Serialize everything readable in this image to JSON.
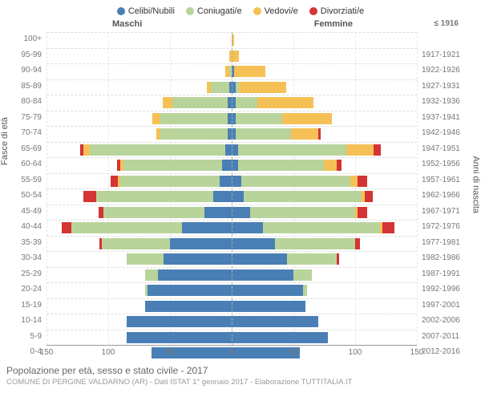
{
  "legend": [
    {
      "label": "Celibi/Nubili",
      "color": "#4a7fb5"
    },
    {
      "label": "Coniugati/e",
      "color": "#b8d49b"
    },
    {
      "label": "Vedovi/e",
      "color": "#f5c156"
    },
    {
      "label": "Divorziati/e",
      "color": "#d43434"
    }
  ],
  "headers": {
    "male": "Maschi",
    "female": "Femmine",
    "top_right": "≤ 1916"
  },
  "axes": {
    "y_title": "Fasce di età",
    "y2_title": "Anni di nascita",
    "x_ticks": [
      150,
      100,
      50,
      0,
      50,
      100,
      150
    ],
    "x_max": 150
  },
  "colors": {
    "single": "#4a7fb5",
    "married": "#b8d49b",
    "widowed": "#f5c156",
    "divorced": "#d43434",
    "grid": "#e8e8e8",
    "center": "#aaaaaa"
  },
  "rows": [
    {
      "age": "100+",
      "year": "",
      "m": [
        0,
        0,
        0,
        0
      ],
      "f": [
        0,
        0,
        2,
        0
      ]
    },
    {
      "age": "95-99",
      "year": "1917-1921",
      "m": [
        0,
        0,
        2,
        0
      ],
      "f": [
        0,
        0,
        6,
        0
      ]
    },
    {
      "age": "90-94",
      "year": "1922-1926",
      "m": [
        0,
        2,
        3,
        0
      ],
      "f": [
        2,
        0,
        25,
        0
      ]
    },
    {
      "age": "85-89",
      "year": "1927-1931",
      "m": [
        2,
        15,
        3,
        0
      ],
      "f": [
        3,
        3,
        38,
        0
      ]
    },
    {
      "age": "80-84",
      "year": "1932-1936",
      "m": [
        3,
        45,
        8,
        0
      ],
      "f": [
        3,
        18,
        45,
        0
      ]
    },
    {
      "age": "75-79",
      "year": "1937-1941",
      "m": [
        3,
        55,
        6,
        0
      ],
      "f": [
        3,
        38,
        40,
        0
      ]
    },
    {
      "age": "70-74",
      "year": "1942-1946",
      "m": [
        3,
        55,
        3,
        0
      ],
      "f": [
        3,
        45,
        22,
        2
      ]
    },
    {
      "age": "65-69",
      "year": "1947-1951",
      "m": [
        5,
        110,
        5,
        3
      ],
      "f": [
        5,
        88,
        22,
        6
      ]
    },
    {
      "age": "60-64",
      "year": "1952-1956",
      "m": [
        8,
        80,
        2,
        3
      ],
      "f": [
        5,
        70,
        10,
        4
      ]
    },
    {
      "age": "55-59",
      "year": "1957-1961",
      "m": [
        10,
        80,
        2,
        6
      ],
      "f": [
        8,
        88,
        6,
        8
      ]
    },
    {
      "age": "50-54",
      "year": "1962-1966",
      "m": [
        15,
        95,
        0,
        10
      ],
      "f": [
        10,
        95,
        3,
        6
      ]
    },
    {
      "age": "45-49",
      "year": "1967-1971",
      "m": [
        22,
        82,
        0,
        4
      ],
      "f": [
        15,
        85,
        2,
        8
      ]
    },
    {
      "age": "40-44",
      "year": "1972-1976",
      "m": [
        40,
        90,
        0,
        8
      ],
      "f": [
        25,
        95,
        2,
        10
      ]
    },
    {
      "age": "35-39",
      "year": "1977-1981",
      "m": [
        50,
        55,
        0,
        2
      ],
      "f": [
        35,
        65,
        0,
        4
      ]
    },
    {
      "age": "30-34",
      "year": "1982-1986",
      "m": [
        55,
        30,
        0,
        0
      ],
      "f": [
        45,
        40,
        0,
        2
      ]
    },
    {
      "age": "25-29",
      "year": "1987-1991",
      "m": [
        60,
        10,
        0,
        0
      ],
      "f": [
        50,
        15,
        0,
        0
      ]
    },
    {
      "age": "20-24",
      "year": "1992-1996",
      "m": [
        68,
        2,
        0,
        0
      ],
      "f": [
        58,
        3,
        0,
        0
      ]
    },
    {
      "age": "15-19",
      "year": "1997-2001",
      "m": [
        70,
        0,
        0,
        0
      ],
      "f": [
        60,
        0,
        0,
        0
      ]
    },
    {
      "age": "10-14",
      "year": "2002-2006",
      "m": [
        85,
        0,
        0,
        0
      ],
      "f": [
        70,
        0,
        0,
        0
      ]
    },
    {
      "age": "5-9",
      "year": "2007-2011",
      "m": [
        85,
        0,
        0,
        0
      ],
      "f": [
        78,
        0,
        0,
        0
      ]
    },
    {
      "age": "0-4",
      "year": "2012-2016",
      "m": [
        65,
        0,
        0,
        0
      ],
      "f": [
        55,
        0,
        0,
        0
      ]
    }
  ],
  "footer": {
    "title": "Popolazione per età, sesso e stato civile - 2017",
    "subtitle": "COMUNE DI PERGINE VALDARNO (AR) - Dati ISTAT 1° gennaio 2017 - Elaborazione TUTTITALIA.IT"
  }
}
